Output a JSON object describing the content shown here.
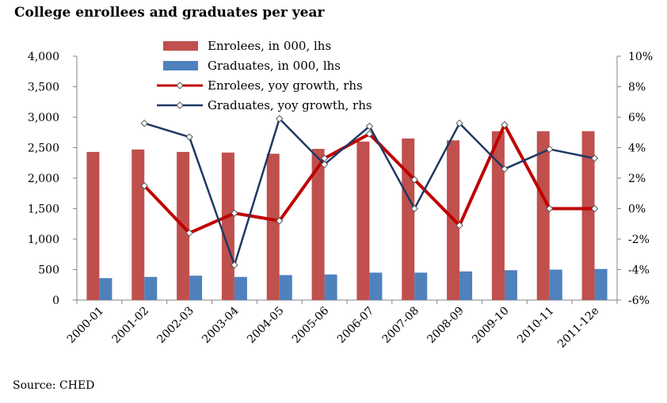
{
  "chart_data": {
    "type": "bar",
    "title": "College enrollees and graduates per year",
    "source": "Source: CHED",
    "categories": [
      "2000-01",
      "2001-02",
      "2002-03",
      "2003-04",
      "2004-05",
      "2005-06",
      "2006-07",
      "2007-08",
      "2008-09",
      "2009-10",
      "2010-11",
      "2011-12e"
    ],
    "left_axis": {
      "min": 0,
      "max": 4000,
      "step": 500,
      "tick_labels": [
        "0",
        "500",
        "1,000",
        "1,500",
        "2,000",
        "2,500",
        "3,000",
        "3,500",
        "4,000"
      ]
    },
    "right_axis": {
      "min": -6,
      "max": 10,
      "step": 2,
      "tick_labels": [
        "-6%",
        "-4%",
        "-2%",
        "0%",
        "2%",
        "4%",
        "6%",
        "8%",
        "10%"
      ]
    },
    "series": [
      {
        "name": "Enrolees, in 000, lhs",
        "kind": "bar",
        "axis": "left",
        "color": "#C0504D",
        "values": [
          2430,
          2470,
          2430,
          2420,
          2400,
          2480,
          2600,
          2650,
          2620,
          2770,
          2770,
          2770
        ]
      },
      {
        "name": "Graduates, in 000, lhs",
        "kind": "bar",
        "axis": "left",
        "color": "#4F81BD",
        "values": [
          360,
          380,
          400,
          380,
          410,
          420,
          450,
          450,
          470,
          490,
          500,
          510
        ]
      },
      {
        "name": "Enrolees, yoy growth, rhs",
        "kind": "line",
        "axis": "right",
        "color": "#C00000",
        "values": [
          null,
          1.5,
          -1.6,
          -0.3,
          -0.8,
          3.3,
          4.9,
          1.9,
          -1.1,
          5.5,
          0.0,
          0.0
        ]
      },
      {
        "name": "Graduates, yoy growth, rhs",
        "kind": "line",
        "axis": "right",
        "color": "#1F3864",
        "values": [
          null,
          5.6,
          4.7,
          -3.7,
          5.9,
          2.9,
          5.4,
          0.0,
          5.6,
          2.6,
          3.9,
          3.3
        ]
      }
    ]
  }
}
